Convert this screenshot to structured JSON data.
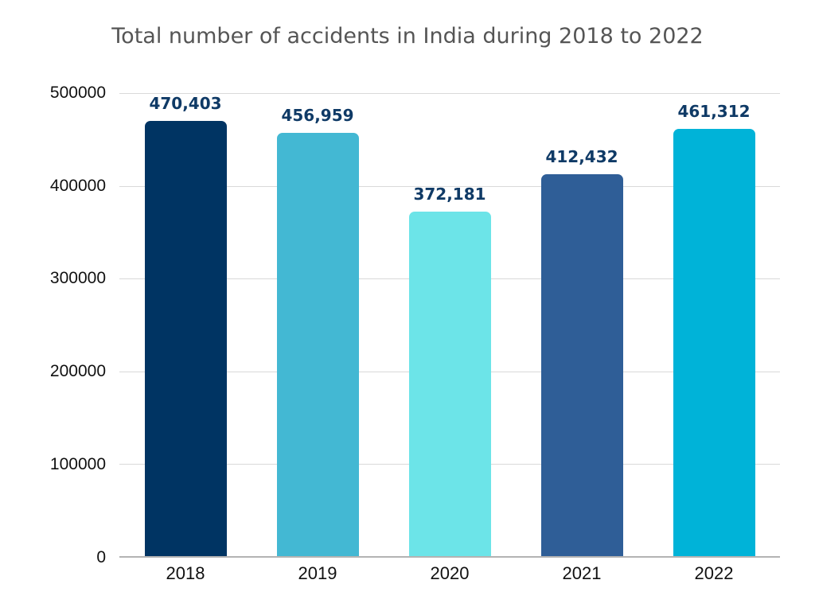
{
  "chart_data": {
    "type": "bar",
    "title": "Total number of accidents in India during 2018 to 2022",
    "xlabel": "",
    "ylabel": "",
    "categories": [
      "2018",
      "2019",
      "2020",
      "2021",
      "2022"
    ],
    "values": [
      470403,
      456959,
      372181,
      412432,
      461312
    ],
    "value_labels": [
      "470,403",
      "456,959",
      "372,181",
      "412,432",
      "461,312"
    ],
    "colors": [
      "#003463",
      "#43b8d3",
      "#6ce4e8",
      "#2f5e97",
      "#00b3d8"
    ],
    "ylim": [
      0,
      500000
    ],
    "yticks": [
      "0",
      "100000",
      "200000",
      "300000",
      "400000",
      "500000"
    ],
    "grid": true,
    "legend": null
  }
}
